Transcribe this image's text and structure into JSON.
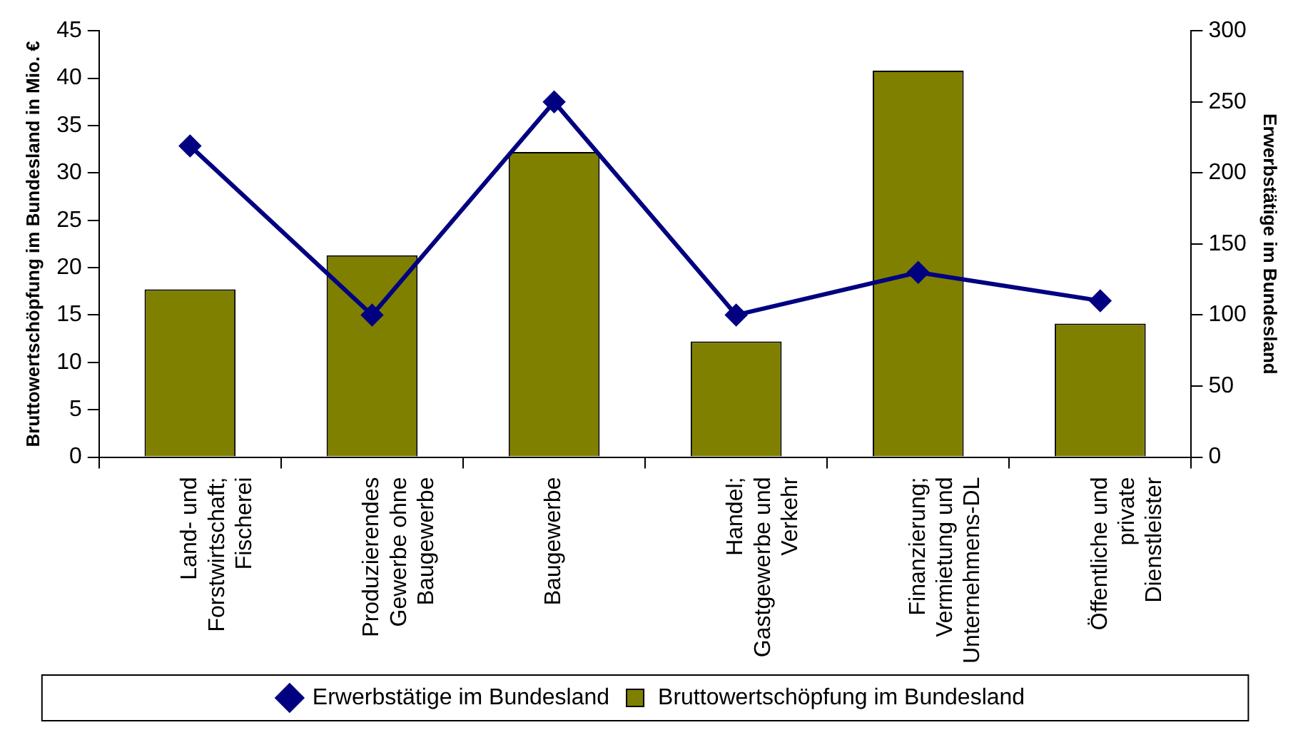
{
  "chart_data": {
    "type": "bar",
    "ylabel": "Bruttowertschöpfung im Bundesland in Mio. €",
    "y2label": "Erwerbstätige im Bundesland",
    "categories": [
      "Land- und Forstwirtschaft; Fischerei",
      "Produzierendes Gewerbe ohne Baugewerbe",
      "Baugewerbe",
      "Handel; Gastgewerbe und Verkehr",
      "Finanzierung; Vermietung und Unternehmens-DL",
      "Öffentliche und private Dienstleister"
    ],
    "series": [
      {
        "name": "Bruttowertschöpfung im Bundesland",
        "color": "#808000",
        "values": [
          17.7,
          21.3,
          32.2,
          12.2,
          40.8,
          14.1
        ]
      },
      {
        "name": "Erwerbstätige im Bundesland",
        "type": "line",
        "axis": "y2",
        "color": "#000080",
        "marker": "diamond",
        "values": [
          219,
          100,
          250,
          100,
          130,
          110
        ]
      }
    ],
    "ylim": [
      0,
      45
    ],
    "yticks": [
      0,
      5,
      10,
      15,
      20,
      25,
      30,
      35,
      40,
      45
    ],
    "y2lim": [
      0,
      300
    ],
    "y2ticks": [
      0,
      50,
      100,
      150,
      200,
      250,
      300
    ],
    "grid": false,
    "legend": "bottom"
  }
}
